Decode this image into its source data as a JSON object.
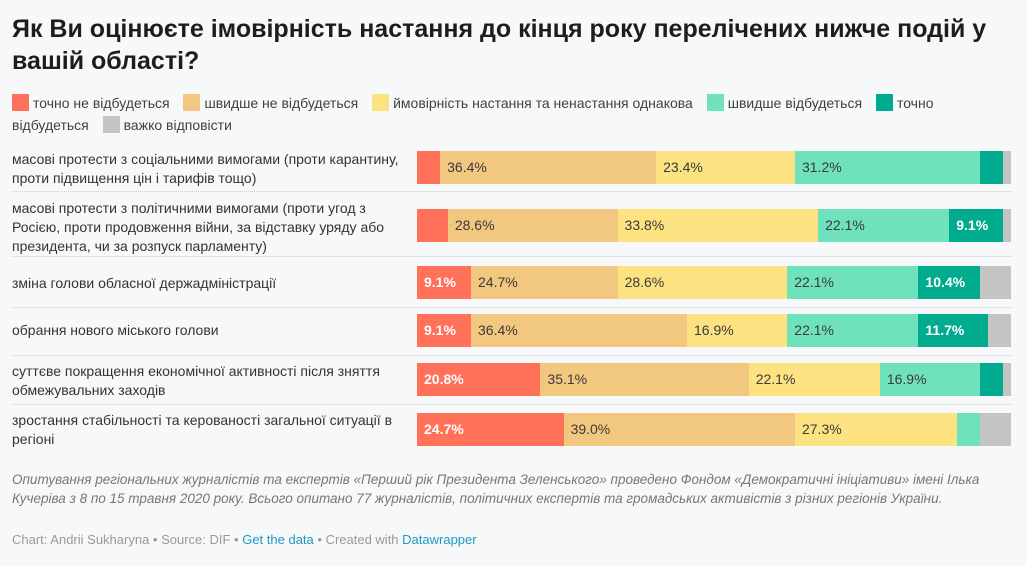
{
  "chart_data": {
    "type": "bar",
    "orientation": "horizontal",
    "stacked": true,
    "normalized": true,
    "title": "Як Ви оцінюєте імовірність настання до кінця року перелічених нижче подій у вашій області?",
    "xlabel": "",
    "ylabel": "",
    "xlim": [
      0,
      100
    ],
    "legend_position": "top",
    "grid": false,
    "categories": [
      "масові протести з соціальними вимогами (проти карантину, проти підвищення цін і тарифів тощо)",
      "масові протести з політичними вимогами (проти угод з Росією, проти продовження війни, за відставку уряду або президента, чи за розпуск парламенту)",
      "зміна голови обласної держадміністрації",
      "обрання нового міського голови",
      "суттєве покращення економічної активності після зняття обмежувальних заходів",
      "зростання стабільності та керованості загальної ситуації в регіоні"
    ],
    "series": [
      {
        "name": "точно не відбудеться",
        "color": "#ff7158",
        "label_style": "light",
        "values": [
          3.9,
          5.2,
          9.1,
          9.1,
          20.8,
          24.7
        ],
        "labels": [
          "",
          "",
          "9.1%",
          "9.1%",
          "20.8%",
          "24.7%"
        ]
      },
      {
        "name": "швидше не відбудеться",
        "color": "#f2c880",
        "label_style": "dark",
        "values": [
          36.4,
          28.6,
          24.7,
          36.4,
          35.1,
          39.0
        ],
        "labels": [
          "36.4%",
          "28.6%",
          "24.7%",
          "36.4%",
          "35.1%",
          "39.0%"
        ]
      },
      {
        "name": "ймовірність настання та ненастання однакова",
        "color": "#fde281",
        "label_style": "dark",
        "values": [
          23.4,
          33.8,
          28.6,
          16.9,
          22.1,
          27.3
        ],
        "labels": [
          "23.4%",
          "33.8%",
          "28.6%",
          "16.9%",
          "22.1%",
          "27.3%"
        ]
      },
      {
        "name": "швидше відбудеться",
        "color": "#6fe2bd",
        "label_style": "dark",
        "values": [
          31.2,
          22.1,
          22.1,
          22.1,
          16.9,
          3.9
        ],
        "labels": [
          "31.2%",
          "22.1%",
          "22.1%",
          "22.1%",
          "16.9%",
          ""
        ]
      },
      {
        "name": "точно відбудеться",
        "color": "#00ab8e",
        "label_style": "light",
        "values": [
          3.9,
          9.1,
          10.4,
          11.7,
          3.9,
          0
        ],
        "labels": [
          "",
          "9.1%",
          "10.4%",
          "11.7%",
          "",
          ""
        ]
      },
      {
        "name": "важко відповісти",
        "color": "#c4c4c4",
        "label_style": "dark",
        "values": [
          1.3,
          1.3,
          5.2,
          3.9,
          1.3,
          5.2
        ],
        "labels": [
          "",
          "",
          "",
          "",
          "",
          ""
        ]
      }
    ]
  },
  "notes": "Опитування регіональних журналістів та експертів «Перший рік Президента Зеленського» проведено Фондом «Демократичні ініціативи» імені Ілька Кучеріва з 8 по 15 травня 2020 року. Всього опитано 77 журналістів, політичних експертів та громадських активістів з різних регіонів України.",
  "footer": {
    "chart_credit": "Chart: Andrii Sukharyna",
    "separator": " • ",
    "source": "Source: DIF",
    "get_data_link": "Get the data",
    "created_with": "Created with ",
    "tool_link": "Datawrapper"
  }
}
